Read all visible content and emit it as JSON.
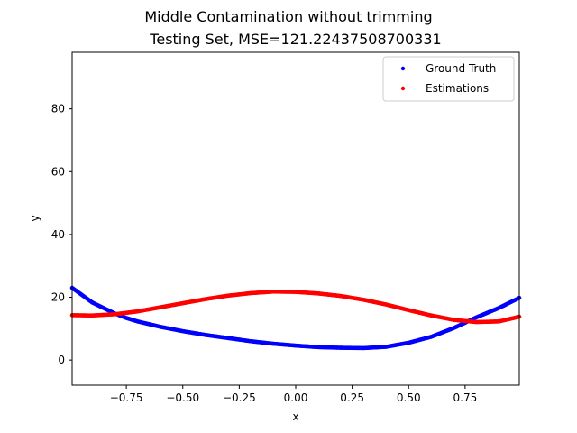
{
  "chart_data": {
    "type": "scatter",
    "suptitle": "Middle Contamination without trimming",
    "title": "Testing Set, MSE=121.22437508700331",
    "xlabel": "x",
    "ylabel": "y",
    "xlim": [
      -0.99,
      0.99
    ],
    "ylim": [
      -8,
      98
    ],
    "x_ticks": [
      -0.75,
      -0.5,
      -0.25,
      0.0,
      0.25,
      0.5,
      0.75
    ],
    "x_tick_labels": [
      "−0.75",
      "−0.50",
      "−0.25",
      "0.00",
      "0.25",
      "0.50",
      "0.75"
    ],
    "y_ticks": [
      0,
      20,
      40,
      60,
      80
    ],
    "y_tick_labels": [
      "0",
      "20",
      "40",
      "60",
      "80"
    ],
    "grid": false,
    "legend_position": "top-right",
    "series": [
      {
        "name": "Ground Truth",
        "color": "#0000ff",
        "x": [
          -0.99,
          -0.9,
          -0.8,
          -0.75,
          -0.7,
          -0.6,
          -0.5,
          -0.4,
          -0.3,
          -0.2,
          -0.1,
          0.0,
          0.1,
          0.2,
          0.3,
          0.4,
          0.5,
          0.6,
          0.7,
          0.8,
          0.9,
          0.99
        ],
        "y": [
          23.0,
          18.3,
          14.8,
          13.4,
          12.3,
          10.6,
          9.2,
          8.0,
          7.0,
          6.0,
          5.2,
          4.6,
          4.1,
          3.9,
          3.8,
          4.2,
          5.5,
          7.4,
          10.2,
          13.6,
          16.6,
          19.8
        ]
      },
      {
        "name": "Estimations",
        "color": "#ff0000",
        "x": [
          -0.99,
          -0.9,
          -0.8,
          -0.7,
          -0.6,
          -0.5,
          -0.4,
          -0.3,
          -0.2,
          -0.1,
          0.0,
          0.1,
          0.2,
          0.3,
          0.4,
          0.5,
          0.6,
          0.7,
          0.8,
          0.9,
          0.99
        ],
        "y": [
          14.3,
          14.2,
          14.6,
          15.5,
          16.8,
          18.1,
          19.4,
          20.5,
          21.3,
          21.8,
          21.7,
          21.2,
          20.4,
          19.2,
          17.7,
          15.9,
          14.2,
          12.8,
          12.1,
          12.3,
          13.8
        ]
      }
    ]
  }
}
